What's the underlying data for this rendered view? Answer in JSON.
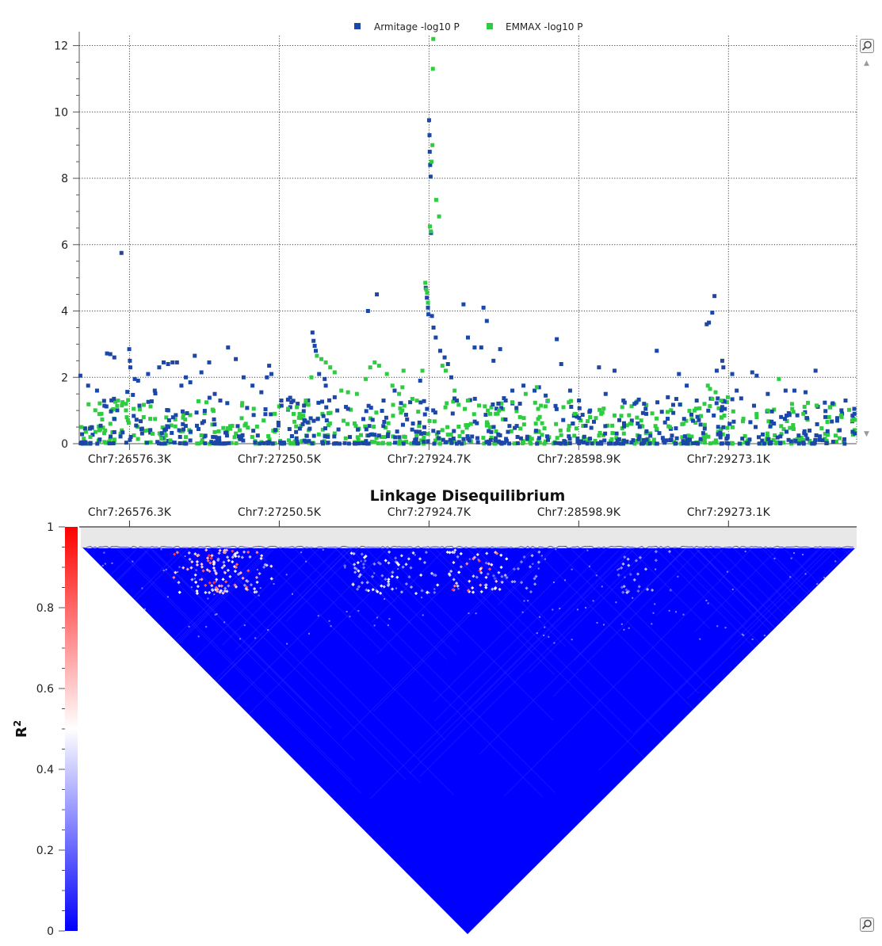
{
  "colors": {
    "armitage": "#1a47a8",
    "emmax": "#2ecc40",
    "grid": "#444444",
    "ld_low": "#0000ff",
    "ld_mid": "#ffffff",
    "ld_high": "#ff0000",
    "ld_background": "#e8e8e8"
  },
  "icons": {
    "zoom_top": "magnifier-icon",
    "zoom_bottom": "magnifier-icon",
    "scroll_up": "scroll-up-arrow-icon",
    "scroll_down": "scroll-down-arrow-icon"
  },
  "chart_data": [
    {
      "type": "scatter",
      "title": "",
      "xlabel": "",
      "ylabel": "",
      "x_range_kb": [
        26350,
        29850
      ],
      "ylim": [
        0,
        12.3
      ],
      "y_ticks": [
        0,
        2,
        4,
        6,
        8,
        10,
        12
      ],
      "x_ticks": [
        {
          "value_kb": 26576.3,
          "label": "Chr7:26576.3K"
        },
        {
          "value_kb": 27250.5,
          "label": "Chr7:27250.5K"
        },
        {
          "value_kb": 27924.7,
          "label": "Chr7:27924.7K"
        },
        {
          "value_kb": 28598.9,
          "label": "Chr7:28598.9K"
        },
        {
          "value_kb": 29273.1,
          "label": "Chr7:29273.1K"
        }
      ],
      "grid": true,
      "legend": "top-center",
      "series": [
        {
          "name": "Armitage -log10 P",
          "color_key": "armitage",
          "points": [
            [
              26355,
              2.05
            ],
            [
              26390,
              1.75
            ],
            [
              26430,
              1.6
            ],
            [
              26475,
              2.72
            ],
            [
              26490,
              2.7
            ],
            [
              26508,
              2.6
            ],
            [
              26540,
              5.75
            ],
            [
              26575,
              2.85
            ],
            [
              26578,
              2.5
            ],
            [
              26580,
              2.3
            ],
            [
              26600,
              1.95
            ],
            [
              26615,
              1.9
            ],
            [
              26660,
              2.1
            ],
            [
              26690,
              1.6
            ],
            [
              26710,
              2.3
            ],
            [
              26730,
              2.45
            ],
            [
              26750,
              2.4
            ],
            [
              26770,
              2.45
            ],
            [
              26790,
              2.45
            ],
            [
              26810,
              1.75
            ],
            [
              26830,
              2.0
            ],
            [
              26850,
              1.85
            ],
            [
              26870,
              2.65
            ],
            [
              26900,
              2.15
            ],
            [
              26935,
              2.45
            ],
            [
              26960,
              1.5
            ],
            [
              26985,
              1.3
            ],
            [
              27020,
              2.9
            ],
            [
              27055,
              2.55
            ],
            [
              27090,
              2.0
            ],
            [
              27130,
              1.75
            ],
            [
              27170,
              1.55
            ],
            [
              27195,
              2.0
            ],
            [
              27205,
              2.35
            ],
            [
              27215,
              2.1
            ],
            [
              27260,
              1.3
            ],
            [
              27300,
              1.1
            ],
            [
              27400,
              3.35
            ],
            [
              27405,
              3.1
            ],
            [
              27410,
              2.95
            ],
            [
              27415,
              2.8
            ],
            [
              27430,
              2.1
            ],
            [
              27455,
              1.95
            ],
            [
              27460,
              1.75
            ],
            [
              27500,
              1.4
            ],
            [
              27560,
              1.05
            ],
            [
              27650,
              4.0
            ],
            [
              27690,
              4.5
            ],
            [
              27720,
              1.3
            ],
            [
              27770,
              1.6
            ],
            [
              27840,
              1.25
            ],
            [
              27885,
              1.9
            ],
            [
              27910,
              4.7
            ],
            [
              27915,
              4.4
            ],
            [
              27920,
              4.1
            ],
            [
              27922,
              3.9
            ],
            [
              27925,
              9.75
            ],
            [
              27927,
              9.3
            ],
            [
              27928,
              8.8
            ],
            [
              27930,
              8.4
            ],
            [
              27932,
              8.05
            ],
            [
              27934,
              6.35
            ],
            [
              27938,
              3.85
            ],
            [
              27945,
              3.5
            ],
            [
              27955,
              3.2
            ],
            [
              27975,
              2.8
            ],
            [
              27995,
              2.6
            ],
            [
              28010,
              2.4
            ],
            [
              28025,
              2.0
            ],
            [
              28050,
              1.3
            ],
            [
              28080,
              4.2
            ],
            [
              28100,
              3.2
            ],
            [
              28130,
              2.9
            ],
            [
              28160,
              2.9
            ],
            [
              28170,
              4.1
            ],
            [
              28185,
              3.7
            ],
            [
              28215,
              2.5
            ],
            [
              28245,
              2.85
            ],
            [
              28270,
              1.3
            ],
            [
              28300,
              1.6
            ],
            [
              28350,
              1.75
            ],
            [
              28400,
              1.6
            ],
            [
              28420,
              1.7
            ],
            [
              28450,
              1.45
            ],
            [
              28500,
              3.15
            ],
            [
              28520,
              2.4
            ],
            [
              28560,
              1.6
            ],
            [
              28600,
              1.3
            ],
            [
              28650,
              1.0
            ],
            [
              28690,
              2.3
            ],
            [
              28720,
              1.5
            ],
            [
              28760,
              2.2
            ],
            [
              28800,
              1.3
            ],
            [
              28850,
              1.2
            ],
            [
              28900,
              1.05
            ],
            [
              28950,
              2.8
            ],
            [
              29000,
              1.4
            ],
            [
              29050,
              2.1
            ],
            [
              29085,
              1.75
            ],
            [
              29130,
              1.3
            ],
            [
              29175,
              3.6
            ],
            [
              29185,
              3.65
            ],
            [
              29200,
              3.95
            ],
            [
              29210,
              4.45
            ],
            [
              29220,
              2.2
            ],
            [
              29245,
              2.5
            ],
            [
              29250,
              2.3
            ],
            [
              29290,
              2.1
            ],
            [
              29310,
              1.6
            ],
            [
              29380,
              2.15
            ],
            [
              29400,
              2.05
            ],
            [
              29450,
              1.5
            ],
            [
              29530,
              1.6
            ],
            [
              29570,
              1.6
            ],
            [
              29620,
              1.55
            ],
            [
              29665,
              2.2
            ],
            [
              29730,
              1.1
            ],
            [
              29800,
              1.3
            ],
            [
              29840,
              0.9
            ]
          ]
        },
        {
          "name": "EMMAX -log10 P",
          "color_key": "emmax",
          "points": [
            [
              26360,
              0.5
            ],
            [
              26400,
              0.2
            ],
            [
              26450,
              0.9
            ],
            [
              26490,
              0.6
            ],
            [
              26525,
              1.3
            ],
            [
              26545,
              1.25
            ],
            [
              26560,
              1.2
            ],
            [
              26595,
              1.05
            ],
            [
              26640,
              0.8
            ],
            [
              26680,
              0.3
            ],
            [
              26720,
              0.15
            ],
            [
              26760,
              0.1
            ],
            [
              26830,
              0.2
            ],
            [
              26900,
              0.25
            ],
            [
              26960,
              0.35
            ],
            [
              27030,
              0.45
            ],
            [
              27100,
              0.6
            ],
            [
              27180,
              0.7
            ],
            [
              27230,
              0.9
            ],
            [
              27290,
              1.05
            ],
            [
              27330,
              1.1
            ],
            [
              27370,
              1.3
            ],
            [
              27395,
              2.0
            ],
            [
              27420,
              2.65
            ],
            [
              27440,
              2.55
            ],
            [
              27460,
              2.45
            ],
            [
              27480,
              2.3
            ],
            [
              27500,
              2.15
            ],
            [
              27530,
              1.6
            ],
            [
              27560,
              1.55
            ],
            [
              27600,
              1.5
            ],
            [
              27640,
              1.95
            ],
            [
              27660,
              2.3
            ],
            [
              27680,
              2.45
            ],
            [
              27700,
              2.35
            ],
            [
              27735,
              2.1
            ],
            [
              27760,
              1.75
            ],
            [
              27790,
              1.5
            ],
            [
              27805,
              1.7
            ],
            [
              27810,
              2.2
            ],
            [
              27850,
              1.35
            ],
            [
              27870,
              1.3
            ],
            [
              27895,
              2.2
            ],
            [
              27908,
              4.85
            ],
            [
              27912,
              4.65
            ],
            [
              27916,
              4.55
            ],
            [
              27920,
              4.25
            ],
            [
              27929,
              6.55
            ],
            [
              27933,
              6.4
            ],
            [
              27936,
              8.5
            ],
            [
              27940,
              9.0
            ],
            [
              27942,
              11.3
            ],
            [
              27944,
              12.2
            ],
            [
              27957,
              7.35
            ],
            [
              27970,
              6.85
            ],
            [
              27985,
              2.35
            ],
            [
              28000,
              2.2
            ],
            [
              28040,
              1.6
            ],
            [
              28100,
              1.3
            ],
            [
              28150,
              1.15
            ],
            [
              28200,
              0.9
            ],
            [
              28240,
              1.0
            ],
            [
              28300,
              1.25
            ],
            [
              28360,
              1.5
            ],
            [
              28410,
              1.7
            ],
            [
              28460,
              1.3
            ],
            [
              28530,
              1.1
            ],
            [
              28580,
              0.9
            ],
            [
              28650,
              0.8
            ],
            [
              28700,
              0.9
            ],
            [
              28760,
              0.85
            ],
            [
              28830,
              0.6
            ],
            [
              28880,
              0.7
            ],
            [
              28950,
              0.45
            ],
            [
              29010,
              0.5
            ],
            [
              29070,
              0.6
            ],
            [
              29120,
              1.0
            ],
            [
              29165,
              1.2
            ],
            [
              29180,
              1.75
            ],
            [
              29190,
              1.65
            ],
            [
              29200,
              1.35
            ],
            [
              29215,
              1.55
            ],
            [
              29240,
              1.3
            ],
            [
              29270,
              1.4
            ],
            [
              29340,
              0.75
            ],
            [
              29400,
              0.8
            ],
            [
              29450,
              1.0
            ],
            [
              29500,
              1.95
            ],
            [
              29560,
              1.05
            ],
            [
              29610,
              0.9
            ],
            [
              29670,
              1.15
            ],
            [
              29730,
              1.1
            ],
            [
              29780,
              0.85
            ],
            [
              29830,
              0.7
            ]
          ],
          "dense_baseline": "many points between 0 and 1.5 across the whole range"
        }
      ]
    },
    {
      "type": "heatmap",
      "title": "Linkage Disequilibrium",
      "ylabel": "R",
      "ylabel_superscript": "2",
      "colorbar_ticks": [
        {
          "value": 0,
          "label": "0"
        },
        {
          "value": 0.2,
          "label": "0.2"
        },
        {
          "value": 0.4,
          "label": "0.4"
        },
        {
          "value": 0.6,
          "label": "0.6"
        },
        {
          "value": 0.8,
          "label": "0.8"
        },
        {
          "value": 1,
          "label": "1"
        }
      ],
      "x_ticks": [
        {
          "value_kb": 26576.3,
          "label": "Chr7:26576.3K"
        },
        {
          "value_kb": 27250.5,
          "label": "Chr7:27250.5K"
        },
        {
          "value_kb": 27924.7,
          "label": "Chr7:27924.7K"
        },
        {
          "value_kb": 28598.9,
          "label": "Chr7:28598.9K"
        },
        {
          "value_kb": 29273.1,
          "label": "Chr7:29273.1K"
        }
      ],
      "colorscale": "blue-white-red",
      "background_r2": 0.02,
      "high_ld_spots": [
        {
          "x_kb": 26900,
          "r2": 0.9
        },
        {
          "x_kb": 26960,
          "r2": 0.7
        },
        {
          "x_kb": 27000,
          "r2": 0.95
        },
        {
          "x_kb": 27050,
          "r2": 0.8
        },
        {
          "x_kb": 27100,
          "r2": 0.6
        },
        {
          "x_kb": 27650,
          "r2": 0.5
        },
        {
          "x_kb": 27700,
          "r2": 0.55
        },
        {
          "x_kb": 27900,
          "r2": 0.5
        },
        {
          "x_kb": 28100,
          "r2": 0.6
        },
        {
          "x_kb": 28150,
          "r2": 0.9
        },
        {
          "x_kb": 28300,
          "r2": 0.4
        },
        {
          "x_kb": 28900,
          "r2": 0.4
        }
      ]
    }
  ],
  "legend": {
    "armitage_label": "Armitage -log10 P",
    "emmax_label": "EMMAX -log10 P"
  }
}
